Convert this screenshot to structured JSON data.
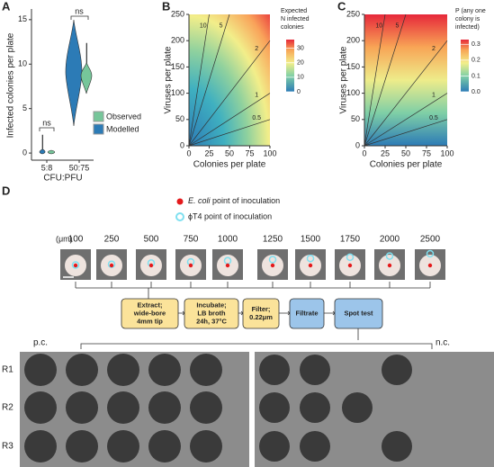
{
  "panel_a": {
    "label": "A",
    "y_label": "Infected colonies per plate",
    "x_label": "CFU:PFU",
    "categories": [
      "5:8",
      "50:75"
    ],
    "ylim": [
      -0.8,
      16.2
    ],
    "yticks": [
      0,
      5,
      10,
      15
    ],
    "significance": [
      "ns",
      "ns"
    ],
    "legend": [
      {
        "name": "Observed",
        "color": "#76c69a"
      },
      {
        "name": "Modelled",
        "color": "#2c7bb6"
      }
    ]
  },
  "panel_b": {
    "label": "B",
    "x_label": "Colonies per plate",
    "y_label": "Viruses per plate",
    "xlim": [
      0,
      100
    ],
    "ylim": [
      0,
      250
    ],
    "xticks": [
      0,
      25,
      50,
      75,
      100
    ],
    "yticks": [
      0,
      50,
      100,
      150,
      200,
      250
    ],
    "contours": [
      10,
      5,
      2,
      1,
      0.5
    ],
    "colorbar": {
      "title": [
        "Expected",
        "N infected",
        "colonies"
      ],
      "lim": [
        0,
        36
      ],
      "ticks": [
        0,
        10,
        20,
        30
      ]
    }
  },
  "panel_c": {
    "label": "C",
    "x_label": "Colonies per plate",
    "y_label": "Viruses per plate",
    "xlim": [
      0,
      100
    ],
    "ylim": [
      0,
      250
    ],
    "xticks": [
      0,
      25,
      50,
      75,
      100
    ],
    "yticks": [
      0,
      50,
      100,
      150,
      200,
      250
    ],
    "contours": [
      10,
      5,
      2,
      1,
      0.5
    ],
    "colorbar": {
      "title": [
        "P (any one",
        "colony is",
        "infected)"
      ],
      "lim": [
        0,
        0.33
      ],
      "ticks": [
        {
          "value": 0,
          "label": "0.0"
        },
        {
          "value": 0.1,
          "label": "0.1"
        },
        {
          "value": 0.2,
          "label": "0.2"
        },
        {
          "value": 0.3,
          "label": "0.3"
        }
      ]
    }
  },
  "panel_d": {
    "label": "D",
    "legend": [
      {
        "species": "E. coli",
        "text": "point of inoculation"
      },
      {
        "text": "ϕT4 point of inoculation"
      }
    ],
    "unit": "(μm)",
    "distances": [
      100,
      250,
      500,
      750,
      1000,
      1250,
      1500,
      1750,
      2000,
      2500
    ],
    "steps": [
      [
        "Extract;",
        "wide-bore",
        "4mm tip"
      ],
      [
        "Incubate;",
        "LB broth",
        "24h, 37°C"
      ],
      [
        "Filter;",
        "0.22μm"
      ],
      [
        "Filtrate"
      ],
      [
        "Spot test"
      ]
    ],
    "controls": [
      "p.c.",
      "n.c."
    ],
    "rows": [
      "R1",
      "R2",
      "R3"
    ]
  }
}
